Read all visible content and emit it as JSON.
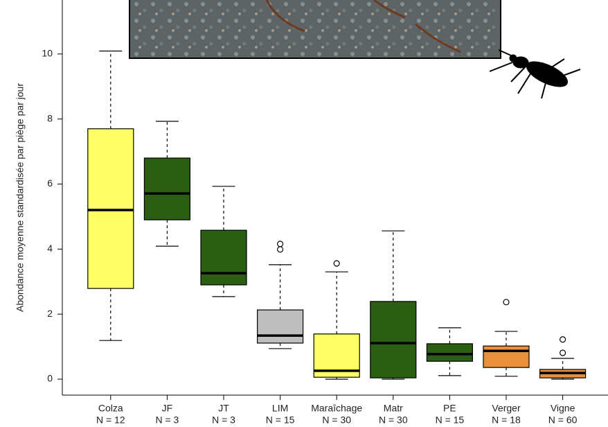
{
  "chart_data": {
    "type": "boxplot",
    "y_label": "Abondance moyenne standardisée par piège par jour",
    "ylim": [
      -0.49,
      11.66
    ],
    "yticks": [
      0,
      2,
      4,
      6,
      8,
      10
    ],
    "boxes": [
      {
        "category": "Colza",
        "n_label": "N = 12",
        "color": "#ffff66",
        "whisker_low": 1.19,
        "q1": 2.79,
        "median": 5.2,
        "q3": 7.7,
        "whisker_high": 10.09,
        "outliers": []
      },
      {
        "category": "JF",
        "n_label": "N = 3",
        "color": "#2b5e12",
        "whisker_low": 4.09,
        "q1": 4.9,
        "median": 5.71,
        "q3": 6.8,
        "whisker_high": 7.93,
        "outliers": []
      },
      {
        "category": "JT",
        "n_label": "N = 3",
        "color": "#2b5e12",
        "whisker_low": 2.54,
        "q1": 2.9,
        "median": 3.26,
        "q3": 4.58,
        "whisker_high": 5.93,
        "outliers": []
      },
      {
        "category": "LIM",
        "n_label": "N = 15",
        "color": "#bebebe",
        "whisker_low": 0.94,
        "q1": 1.11,
        "median": 1.34,
        "q3": 2.13,
        "whisker_high": 3.52,
        "outliers": [
          3.99,
          4.16
        ]
      },
      {
        "category": "Maraîchage",
        "n_label": "N = 30",
        "color": "#ffff66",
        "whisker_low": 0,
        "q1": 0.06,
        "median": 0.26,
        "q3": 1.39,
        "whisker_high": 3.3,
        "outliers": [
          3.56
        ]
      },
      {
        "category": "Matr",
        "n_label": "N = 30",
        "color": "#2b5e12",
        "whisker_low": 0,
        "q1": 0.04,
        "median": 1.11,
        "q3": 2.39,
        "whisker_high": 4.56,
        "outliers": []
      },
      {
        "category": "PE",
        "n_label": "N = 15",
        "color": "#2b5e12",
        "whisker_low": 0.11,
        "q1": 0.55,
        "median": 0.77,
        "q3": 1.09,
        "whisker_high": 1.58,
        "outliers": []
      },
      {
        "category": "Verger",
        "n_label": "N = 18",
        "color": "#e8913a",
        "whisker_low": 0.09,
        "q1": 0.36,
        "median": 0.87,
        "q3": 1.02,
        "whisker_high": 1.47,
        "outliers": [
          2.37
        ]
      },
      {
        "category": "Vigne",
        "n_label": "N = 60",
        "color": "#e8913a",
        "whisker_low": 0,
        "q1": 0.04,
        "median": 0.19,
        "q3": 0.3,
        "whisker_high": 0.64,
        "outliers": [
          0.81,
          1.22
        ]
      }
    ]
  }
}
